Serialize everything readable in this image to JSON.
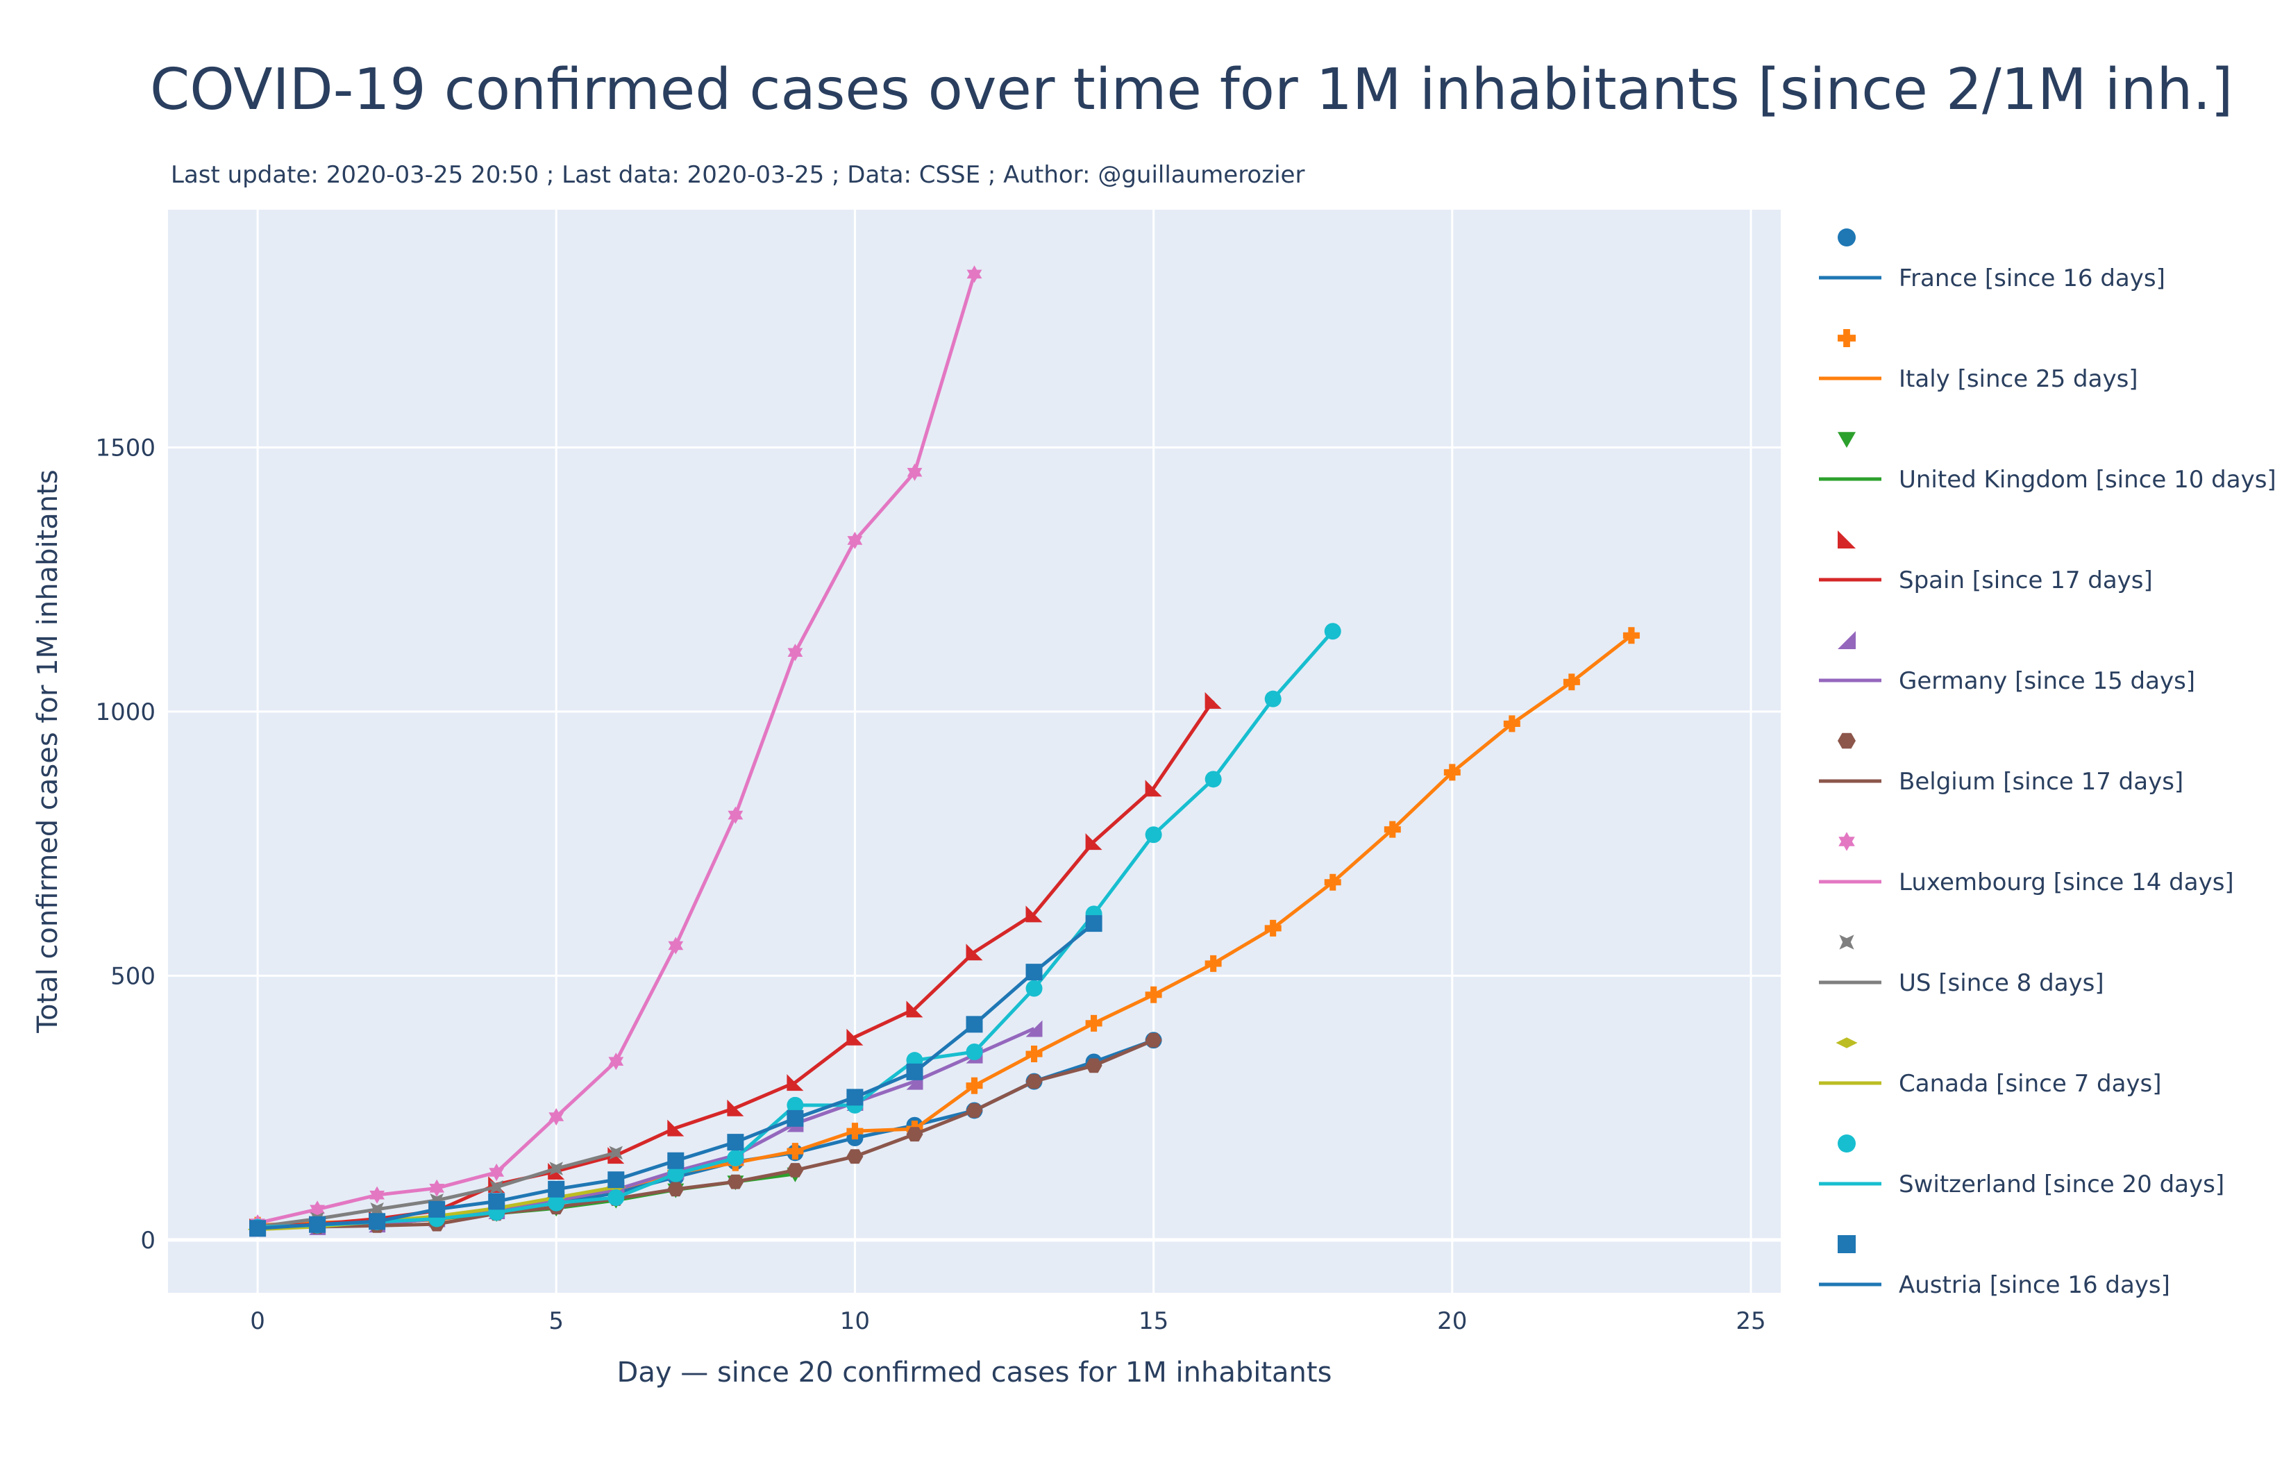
{
  "chart_data": {
    "type": "line",
    "title": "COVID-19 confirmed cases over time for 1M inhabitants  [since 2/1M inh.]",
    "subtitle": "Last update: 2020-03-25 20:50 ; Last data: 2020-03-25 ; Data: CSSE ; Author: @guillaumerozier",
    "xlabel": "Day — since 20 confirmed cases for 1M inhabitants",
    "ylabel": "Total confirmed cases for 1M inhabitants",
    "xlim": [
      -1.5,
      25.5
    ],
    "ylim": [
      -100,
      1950
    ],
    "xticks": [
      0,
      5,
      10,
      15,
      20,
      25
    ],
    "yticks": [
      0,
      500,
      1000,
      1500
    ],
    "grid": true,
    "legend_position": "right",
    "background": "#e5ecf6",
    "series": [
      {
        "name": "France [since 16 days]",
        "color": "#1f77b4",
        "marker": "circle",
        "values": [
          22,
          28,
          32,
          44,
          55,
          69,
          89,
          119,
          148,
          165,
          193,
          217,
          245,
          300,
          337,
          378
        ]
      },
      {
        "name": "Italy [since 25 days]",
        "color": "#ff7f0e",
        "marker": "cross",
        "values": [
          28,
          33,
          35,
          38,
          54,
          75,
          95,
          127,
          146,
          168,
          206,
          210,
          292,
          352,
          410,
          464,
          523,
          590,
          677,
          777,
          885,
          977,
          1056,
          1144
        ]
      },
      {
        "name": "United Kingdom [since 10 days]",
        "color": "#2ca02c",
        "marker": "triangle-down",
        "values": [
          21,
          29,
          30,
          40,
          50,
          60,
          75,
          95,
          110,
          125
        ]
      },
      {
        "name": "Spain [since 17 days]",
        "color": "#d62728",
        "marker": "triangle-sw",
        "values": [
          25,
          30,
          40,
          55,
          105,
          130,
          160,
          212,
          250,
          298,
          384,
          437,
          545,
          617,
          754,
          855,
          1021
        ]
      },
      {
        "name": "Germany [since 15 days]",
        "color": "#9467bd",
        "marker": "triangle-ne",
        "values": [
          22,
          25,
          30,
          40,
          55,
          75,
          95,
          130,
          160,
          220,
          260,
          300,
          350,
          400
        ]
      },
      {
        "name": "Belgium [since 17 days]",
        "color": "#8c564b",
        "marker": "hexagon",
        "values": [
          25,
          25,
          27,
          30,
          50,
          62,
          78,
          96,
          110,
          132,
          158,
          200,
          245,
          300,
          330,
          378
        ]
      },
      {
        "name": "Luxembourg [since 14 days]",
        "color": "#e377c2",
        "marker": "star",
        "values": [
          32,
          58,
          85,
          98,
          128,
          233,
          338,
          557,
          804,
          1112,
          1324,
          1453,
          1828
        ]
      },
      {
        "name": "US [since 8 days]",
        "color": "#7f7f7f",
        "marker": "bowtie",
        "values": [
          25,
          40,
          58,
          75,
          100,
          135,
          165
        ]
      },
      {
        "name": "Canada [since 7 days]",
        "color": "#bcbd22",
        "marker": "diamond-wide",
        "values": [
          20,
          25,
          35,
          45,
          60,
          80,
          100
        ]
      },
      {
        "name": "Switzerland [since 20 days]",
        "color": "#17becf",
        "marker": "circle",
        "values": [
          24,
          28,
          34,
          40,
          52,
          70,
          80,
          125,
          155,
          255,
          255,
          340,
          356,
          476,
          617,
          767,
          872,
          1024,
          1152
        ]
      },
      {
        "name": "Austria [since 16 days]",
        "color": "#1f77b4",
        "marker": "square",
        "values": [
          22,
          29,
          35,
          58,
          73,
          96,
          114,
          150,
          185,
          230,
          270,
          318,
          408,
          507,
          599
        ]
      }
    ]
  }
}
